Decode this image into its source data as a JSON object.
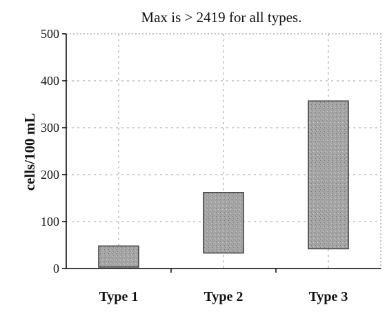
{
  "chart_data": {
    "type": "bar",
    "subtype": "floating-range",
    "title": "Max is > 2419 for all types.",
    "xlabel": "",
    "ylabel": "cells/100 mL",
    "ylim": [
      0,
      500
    ],
    "yticks": [
      0,
      100,
      200,
      300,
      400,
      500
    ],
    "categories": [
      "Type 1",
      "Type 2",
      "Type 3"
    ],
    "ranges": [
      {
        "low": 3,
        "high": 48
      },
      {
        "low": 33,
        "high": 162
      },
      {
        "low": 42,
        "high": 357
      }
    ],
    "grid": true,
    "legend": "none",
    "bar_color": "#a6a6a6"
  }
}
